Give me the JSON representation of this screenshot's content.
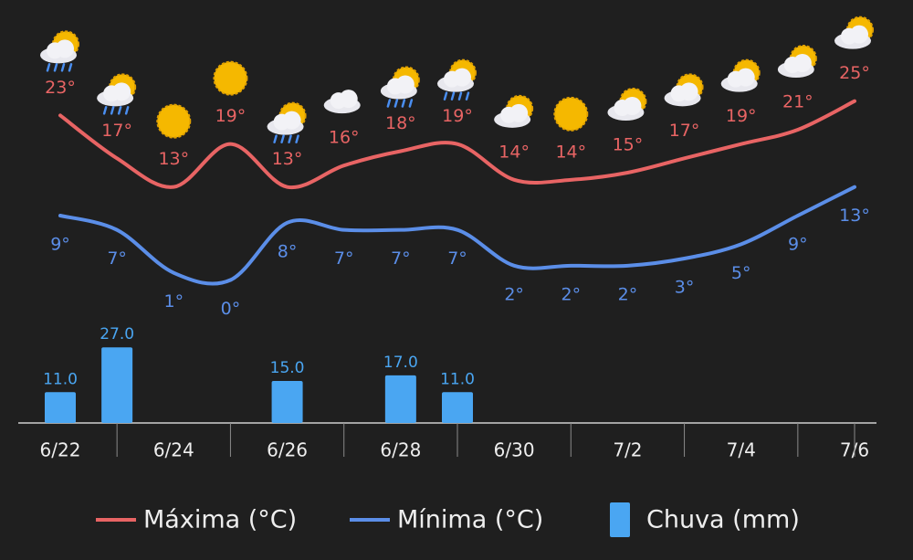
{
  "chart_data": {
    "type": "line",
    "categories": [
      "6/22",
      null,
      "6/24",
      null,
      "6/26",
      null,
      "6/28",
      null,
      "6/30",
      null,
      "7/2",
      null,
      "7/4",
      null,
      "7/6"
    ],
    "series": [
      {
        "name": "Máxima (°C)",
        "color": "#e86464",
        "values": [
          23,
          17,
          13,
          19,
          13,
          16,
          18,
          19,
          14,
          14,
          15,
          17,
          19,
          21,
          25
        ],
        "value_labels": [
          "23°",
          "17°",
          "13°",
          "19°",
          "13°",
          "16°",
          "18°",
          "19°",
          "14°",
          "14°",
          "15°",
          "17°",
          "19°",
          "21°",
          "25°"
        ]
      },
      {
        "name": "Mínima (°C)",
        "color": "#5b8ee8",
        "values": [
          9,
          7,
          1,
          0,
          8,
          7,
          7,
          7,
          2,
          2,
          2,
          3,
          5,
          9,
          13
        ],
        "value_labels": [
          "9°",
          "7°",
          "1°",
          "0°",
          "8°",
          "7°",
          "7°",
          "7°",
          "2°",
          "2°",
          "2°",
          "3°",
          "5°",
          "9°",
          "13°"
        ]
      },
      {
        "name": "Chuva (mm)",
        "type": "bar",
        "axis": "y2",
        "color": "#4aa6f2",
        "values": [
          11,
          27,
          null,
          null,
          15,
          null,
          17,
          11,
          null,
          null,
          null,
          null,
          null,
          null,
          null
        ],
        "value_labels": [
          "11.0",
          "27.0",
          null,
          null,
          "15.0",
          null,
          "17.0",
          "11.0",
          null,
          null,
          null,
          null,
          null,
          null,
          null
        ]
      }
    ],
    "ylim": [
      -3,
      27
    ],
    "y2lim": [
      0,
      30
    ]
  }
}
